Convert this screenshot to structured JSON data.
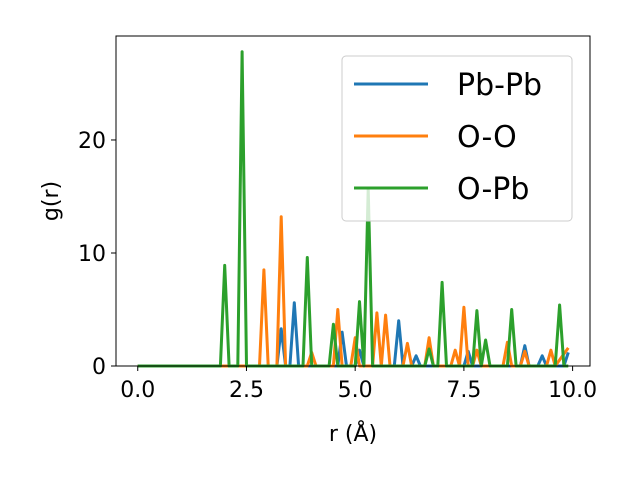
{
  "chart_data": {
    "type": "line",
    "xlabel": "r (Å)",
    "ylabel": "g(r)",
    "xlim": [
      -0.5,
      10.4
    ],
    "ylim": [
      0,
      29.2
    ],
    "xticks": [
      0.0,
      2.5,
      5.0,
      7.5,
      10.0
    ],
    "xtick_labels": [
      "0.0",
      "2.5",
      "5.0",
      "7.5",
      "10.0"
    ],
    "yticks": [
      0,
      10,
      20
    ],
    "ytick_labels": [
      "0",
      "10",
      "20"
    ],
    "grid": false,
    "legend_position": "top-right",
    "series": [
      {
        "name": "Pb-Pb",
        "color": "#1f77b4",
        "points": [
          [
            0,
            0
          ],
          [
            3.2,
            0
          ],
          [
            3.3,
            3.3
          ],
          [
            3.4,
            0
          ],
          [
            3.5,
            0
          ],
          [
            3.6,
            5.6
          ],
          [
            3.7,
            0
          ],
          [
            4.6,
            0
          ],
          [
            4.7,
            3.0
          ],
          [
            4.8,
            0
          ],
          [
            5.0,
            0
          ],
          [
            5.1,
            1.4
          ],
          [
            5.2,
            0
          ],
          [
            5.9,
            0
          ],
          [
            6.0,
            4.0
          ],
          [
            6.1,
            0
          ],
          [
            6.3,
            0
          ],
          [
            6.4,
            0.9
          ],
          [
            6.5,
            0
          ],
          [
            7.5,
            0
          ],
          [
            7.6,
            1.3
          ],
          [
            7.7,
            0
          ],
          [
            8.8,
            0
          ],
          [
            8.9,
            1.8
          ],
          [
            9.0,
            0
          ],
          [
            9.2,
            0
          ],
          [
            9.3,
            0.9
          ],
          [
            9.4,
            0
          ],
          [
            9.8,
            0
          ],
          [
            9.9,
            1.2
          ]
        ]
      },
      {
        "name": "O-O",
        "color": "#ff7f0e",
        "points": [
          [
            0,
            0
          ],
          [
            2.8,
            0
          ],
          [
            2.9,
            8.5
          ],
          [
            3.0,
            0
          ],
          [
            3.2,
            0
          ],
          [
            3.3,
            13.2
          ],
          [
            3.4,
            0
          ],
          [
            3.9,
            0
          ],
          [
            4.0,
            1.2
          ],
          [
            4.1,
            0
          ],
          [
            4.5,
            0
          ],
          [
            4.6,
            5.0
          ],
          [
            4.7,
            0
          ],
          [
            4.9,
            0
          ],
          [
            5.0,
            2.5
          ],
          [
            5.1,
            0
          ],
          [
            5.4,
            0
          ],
          [
            5.5,
            4.7
          ],
          [
            5.6,
            0
          ],
          [
            5.7,
            4.5
          ],
          [
            5.8,
            0
          ],
          [
            6.1,
            0
          ],
          [
            6.2,
            2.0
          ],
          [
            6.3,
            0
          ],
          [
            6.6,
            0
          ],
          [
            6.7,
            2.5
          ],
          [
            6.8,
            0
          ],
          [
            7.2,
            0
          ],
          [
            7.3,
            1.4
          ],
          [
            7.4,
            0
          ],
          [
            7.5,
            5.2
          ],
          [
            7.6,
            0
          ],
          [
            7.7,
            0
          ],
          [
            7.8,
            1.4
          ],
          [
            7.9,
            0
          ],
          [
            8.4,
            0
          ],
          [
            8.5,
            2.1
          ],
          [
            8.6,
            0
          ],
          [
            8.8,
            0
          ],
          [
            8.9,
            1.3
          ],
          [
            9.0,
            0
          ],
          [
            9.4,
            0
          ],
          [
            9.5,
            1.4
          ],
          [
            9.6,
            0
          ],
          [
            9.9,
            1.6
          ]
        ]
      },
      {
        "name": "O-Pb",
        "color": "#2ca02c",
        "points": [
          [
            0,
            0
          ],
          [
            1.9,
            0
          ],
          [
            2.0,
            8.9
          ],
          [
            2.1,
            0
          ],
          [
            2.3,
            0
          ],
          [
            2.4,
            27.8
          ],
          [
            2.5,
            0
          ],
          [
            3.8,
            0
          ],
          [
            3.9,
            9.6
          ],
          [
            4.0,
            0
          ],
          [
            4.4,
            0
          ],
          [
            4.5,
            3.7
          ],
          [
            4.6,
            0
          ],
          [
            5.0,
            0
          ],
          [
            5.1,
            5.7
          ],
          [
            5.2,
            0
          ],
          [
            5.3,
            15.7
          ],
          [
            5.4,
            0
          ],
          [
            6.6,
            0
          ],
          [
            6.7,
            1.5
          ],
          [
            6.8,
            0
          ],
          [
            6.9,
            0
          ],
          [
            7.0,
            7.4
          ],
          [
            7.1,
            0
          ],
          [
            7.7,
            0
          ],
          [
            7.8,
            4.9
          ],
          [
            7.9,
            0
          ],
          [
            8.0,
            2.3
          ],
          [
            8.1,
            0
          ],
          [
            8.5,
            0
          ],
          [
            8.6,
            5.0
          ],
          [
            8.7,
            0
          ],
          [
            9.6,
            0
          ],
          [
            9.7,
            5.4
          ],
          [
            9.8,
            0
          ],
          [
            9.9,
            0
          ]
        ]
      }
    ]
  }
}
